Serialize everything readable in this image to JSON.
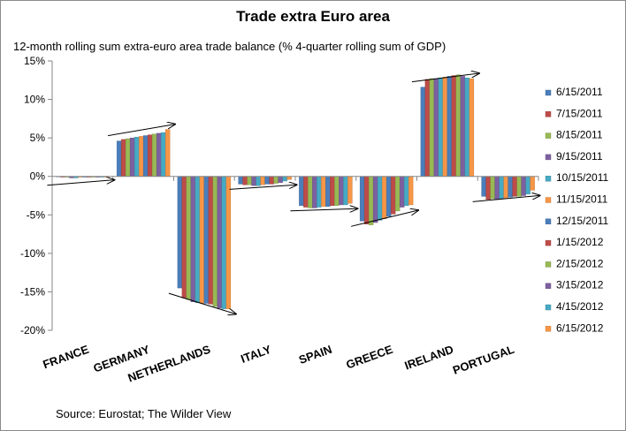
{
  "chart_data": {
    "type": "bar",
    "title": "Trade extra Euro area",
    "subtitle": "12-month rolling  sum extra-euro area trade balance (% 4-quarter rolling sum of GDP)",
    "source": "Source:  Eurostat; The Wilder View",
    "categories": [
      "FRANCE",
      "GERMANY",
      "NETHERLANDS",
      "ITALY",
      "SPAIN",
      "GREECE",
      "IRELAND",
      "PORTUGAL"
    ],
    "ylim": [
      -20,
      15
    ],
    "yticks": [
      -20,
      -15,
      -10,
      -5,
      0,
      5,
      10,
      15
    ],
    "ytick_labels": [
      "-20%",
      "-15%",
      "-10%",
      "-5%",
      "0%",
      "5%",
      "10%",
      "15%"
    ],
    "grid": false,
    "legend_position": "right",
    "series": [
      {
        "name": "6/15/2011",
        "color": "#4a7ebb",
        "values": [
          0.0,
          4.6,
          -14.5,
          -1.0,
          -3.8,
          -5.8,
          11.6,
          -2.6
        ]
      },
      {
        "name": "7/15/2011",
        "color": "#be4b48",
        "values": [
          -0.1,
          4.8,
          -15.8,
          -1.1,
          -4.0,
          -6.2,
          12.6,
          -3.0
        ]
      },
      {
        "name": "8/15/2011",
        "color": "#98b954",
        "values": [
          -0.1,
          4.9,
          -16.0,
          -1.1,
          -4.1,
          -6.3,
          12.7,
          -2.9
        ]
      },
      {
        "name": "9/15/2011",
        "color": "#7d60a0",
        "values": [
          -0.2,
          5.0,
          -16.3,
          -1.2,
          -4.1,
          -6.0,
          12.7,
          -3.0
        ]
      },
      {
        "name": "10/15/2011",
        "color": "#46aac4",
        "values": [
          -0.2,
          5.1,
          -16.4,
          -1.2,
          -4.0,
          -5.7,
          12.8,
          -2.9
        ]
      },
      {
        "name": "11/15/2011",
        "color": "#f79646",
        "values": [
          -0.1,
          5.2,
          -16.5,
          -1.1,
          -3.9,
          -5.5,
          12.9,
          -2.8
        ]
      },
      {
        "name": "12/15/2011",
        "color": "#4a7ebb",
        "values": [
          -0.1,
          5.3,
          -16.5,
          -1.0,
          -3.9,
          -5.2,
          13.0,
          -2.7
        ]
      },
      {
        "name": "1/15/2012",
        "color": "#be4b48",
        "values": [
          -0.1,
          5.4,
          -16.6,
          -1.0,
          -3.8,
          -4.9,
          13.1,
          -2.6
        ]
      },
      {
        "name": "2/15/2012",
        "color": "#98b954",
        "values": [
          -0.1,
          5.5,
          -16.9,
          -0.9,
          -3.8,
          -4.5,
          13.2,
          -2.6
        ]
      },
      {
        "name": "3/15/2012",
        "color": "#7d60a0",
        "values": [
          -0.1,
          5.6,
          -17.1,
          -0.8,
          -3.7,
          -4.0,
          13.0,
          -2.5
        ]
      },
      {
        "name": "4/15/2012",
        "color": "#46aac4",
        "values": [
          -0.1,
          5.7,
          -17.2,
          -0.6,
          -3.7,
          -3.8,
          12.8,
          -2.3
        ]
      },
      {
        "name": "6/15/2012",
        "color": "#f79646",
        "values": [
          -0.1,
          6.1,
          -17.2,
          -0.4,
          -3.5,
          -3.7,
          12.7,
          -1.8
        ]
      }
    ],
    "annotations": "trend arrows drawn over each country's bar group"
  }
}
